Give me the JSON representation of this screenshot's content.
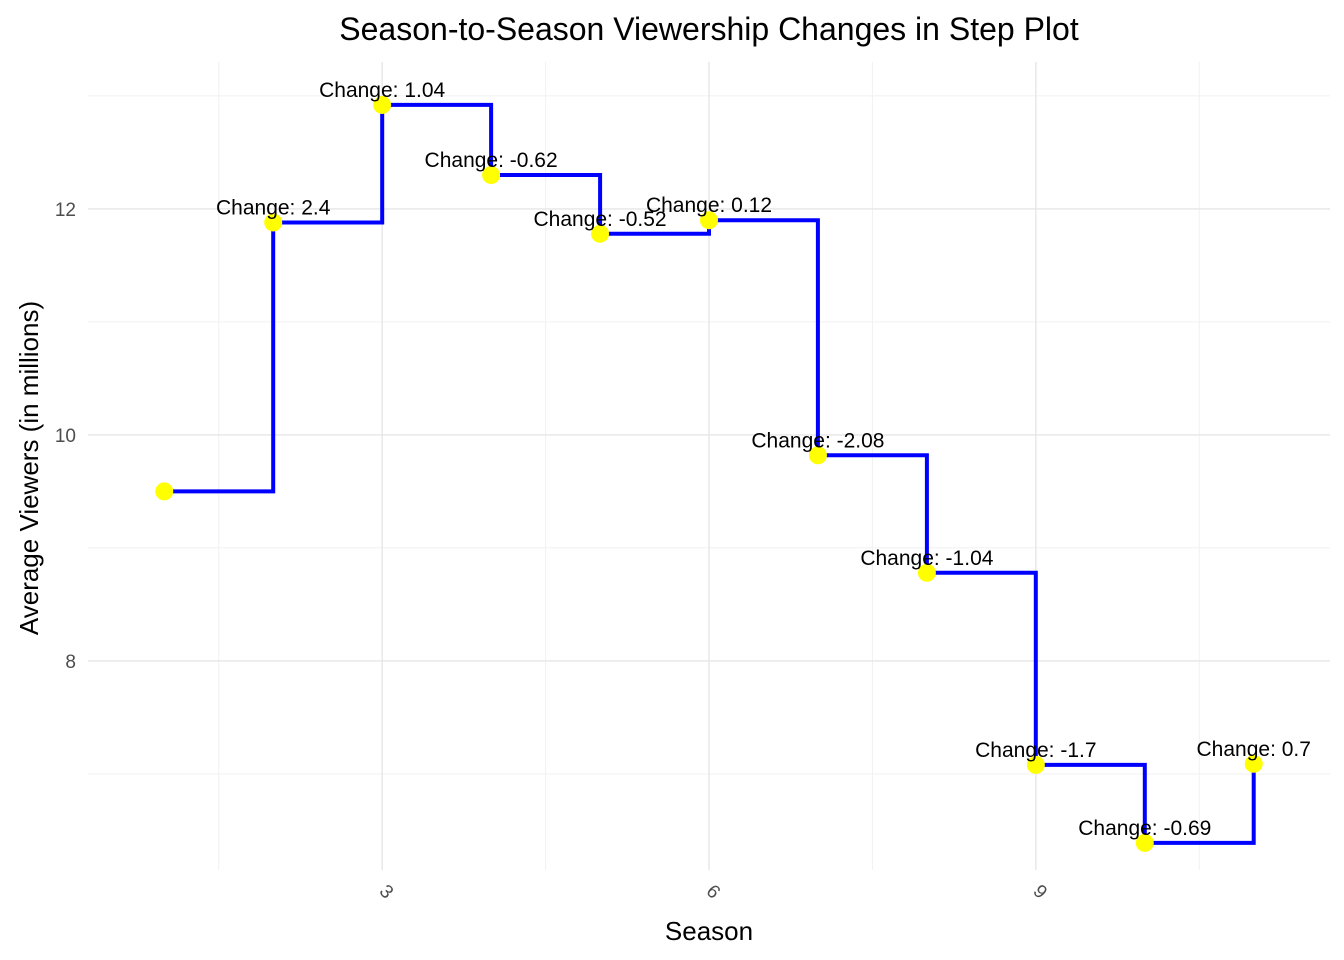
{
  "chart_data": {
    "type": "line",
    "subtype": "step",
    "title": "Season-to-Season Viewership Changes in Step Plot",
    "xlabel": "Season",
    "ylabel": "Average Viewers (in millions)",
    "xlim": [
      0.3,
      11.7
    ],
    "ylim": [
      6.15,
      13.3
    ],
    "x_ticks": [
      3,
      6,
      9
    ],
    "x_tick_labels": [
      "3",
      "6",
      "9"
    ],
    "x_minor_ticks": [
      1.5,
      4.5,
      7.5,
      10.5
    ],
    "x_tick_rotation_deg": 45,
    "y_ticks": [
      8,
      10,
      12
    ],
    "y_tick_labels": [
      "8",
      "10",
      "12"
    ],
    "y_minor_ticks": [
      7,
      9,
      11,
      13
    ],
    "grid": true,
    "legend": "none",
    "line_color": "#0000ff",
    "point_color": "#ffff00",
    "series": [
      {
        "x": [
          1,
          2,
          3,
          4,
          5,
          6,
          7,
          8,
          9,
          10,
          11
        ],
        "values": [
          9.5,
          11.88,
          12.92,
          12.3,
          11.78,
          11.9,
          9.82,
          8.78,
          7.08,
          6.39,
          7.09
        ]
      }
    ],
    "annotations": [
      "",
      "Change: 2.4",
      "Change: 1.04",
      "Change: -0.62",
      "Change: -0.52",
      "Change: 0.12",
      "Change: -2.08",
      "Change: -1.04",
      "Change: -1.7",
      "Change: -0.69",
      "Change: 0.7"
    ]
  }
}
